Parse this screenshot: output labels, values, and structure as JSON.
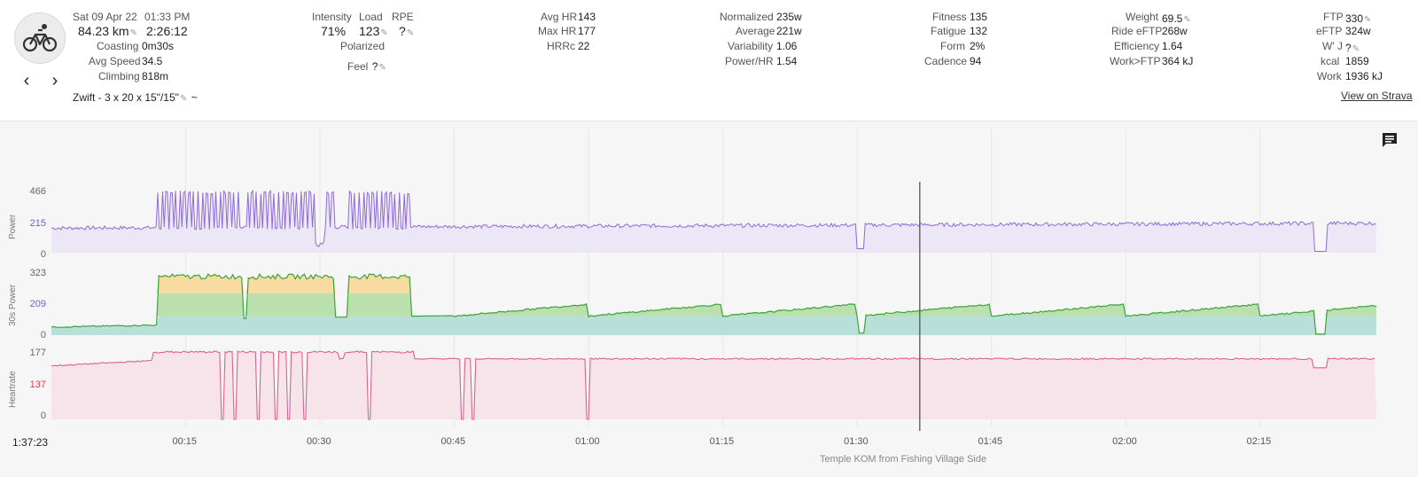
{
  "activity": {
    "date": "Sat 09 Apr 22",
    "time": "01:33 PM",
    "distance": "84.23 km",
    "duration": "2:26:12",
    "coasting_label": "Coasting",
    "coasting": "0m30s",
    "avg_speed_label": "Avg Speed",
    "avg_speed": "34.5",
    "climbing_label": "Climbing",
    "climbing": "818m",
    "name": "Zwift - 3 x 20 x 15\"/15\"",
    "tilde": "~"
  },
  "col2": {
    "intensity_label": "Intensity",
    "intensity": "71%",
    "load_label": "Load",
    "load": "123",
    "rpe_label": "RPE",
    "rpe": "?",
    "polarized": "Polarized",
    "feel_label": "Feel",
    "feel": "?"
  },
  "col3": {
    "avg_hr_label": "Avg HR",
    "avg_hr": "143",
    "max_hr_label": "Max HR",
    "max_hr": "177",
    "hrrc_label": "HRRc",
    "hrrc": "22"
  },
  "col4": {
    "normalized_label": "Normalized",
    "normalized": "235w",
    "average_label": "Average",
    "average": "221w",
    "variability_label": "Variability",
    "variability": "1.06",
    "power_hr_label": "Power/HR",
    "power_hr": "1.54"
  },
  "col5": {
    "fitness_label": "Fitness",
    "fitness": "135",
    "fatigue_label": "Fatigue",
    "fatigue": "132",
    "form_label": "Form",
    "form": "2%",
    "cadence_label": "Cadence",
    "cadence": "94"
  },
  "col6": {
    "weight_label": "Weight",
    "weight": "69.5",
    "ride_eftp_label": "Ride eFTP",
    "ride_eftp": "268w",
    "efficiency_label": "Efficiency",
    "efficiency": "1.64",
    "work_ftp_label": "Work>FTP",
    "work_ftp": "364 kJ"
  },
  "col7": {
    "ftp_label": "FTP",
    "ftp": "330",
    "eftp_label": "eFTP",
    "eftp": "324w",
    "wj_label": "W' J",
    "wj": "?",
    "kcal_label": "kcal",
    "kcal": "1859",
    "work_label": "Work",
    "work": "1936 kJ",
    "strava_link": "View on Strava"
  },
  "traces": {
    "power": {
      "name": "Power",
      "ticks": [
        "466",
        "215",
        "0"
      ],
      "color": "#8f6bd6",
      "fill": "#ece7f6"
    },
    "power30": {
      "name": "30s Power",
      "ticks": [
        "323",
        "209",
        "0"
      ]
    },
    "heartrate": {
      "name": "Heartrate",
      "ticks": [
        "177",
        "137",
        "0"
      ],
      "color": "#e0608a",
      "fill": "#f7e4ea"
    }
  },
  "x_axis": {
    "start": "1:37:23",
    "ticks": [
      "00:15",
      "00:30",
      "00:45",
      "01:00",
      "01:15",
      "01:30",
      "01:45",
      "02:00",
      "02:15"
    ],
    "segment": "Temple KOM from Fishing Village Side"
  },
  "cursor_time_min": 97
}
